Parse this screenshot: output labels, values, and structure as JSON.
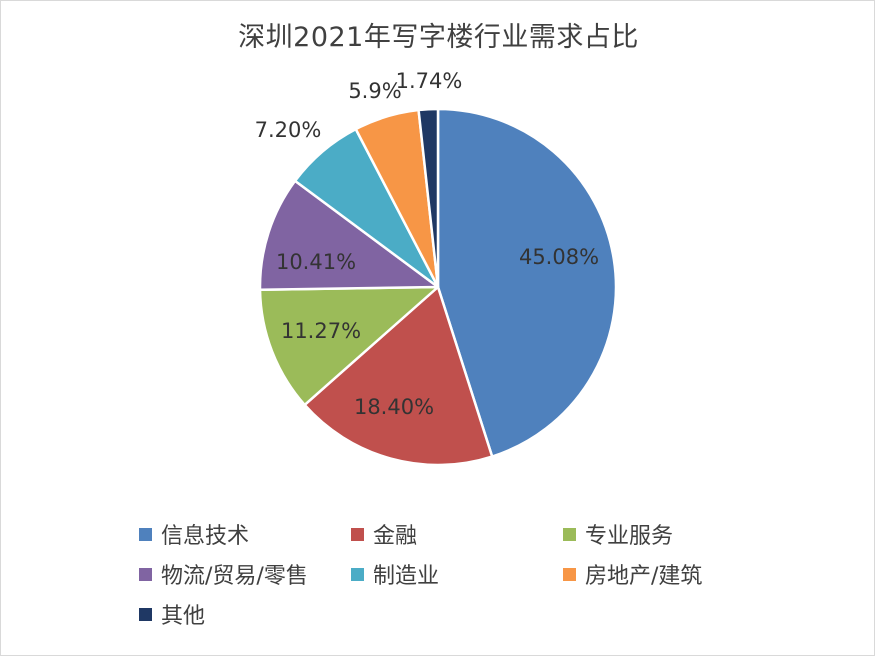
{
  "chart_data": {
    "type": "pie",
    "title": "深圳2021年写字楼行业需求占比",
    "categories": [
      "信息技术",
      "金融",
      "专业服务",
      "物流/贸易/零售",
      "制造业",
      "房地产/建筑",
      "其他"
    ],
    "values": [
      45.08,
      18.4,
      11.27,
      10.41,
      7.2,
      5.9,
      1.74
    ],
    "data_labels": [
      "45.08%",
      "18.40%",
      "11.27%",
      "10.41%",
      "7.20%",
      "5.9%",
      "1.74%"
    ],
    "colors": [
      "#4f81bd",
      "#c0504d",
      "#9bbb59",
      "#8064a2",
      "#4bacc6",
      "#f79646",
      "#1f3864"
    ],
    "legend_placement": "bottom"
  }
}
